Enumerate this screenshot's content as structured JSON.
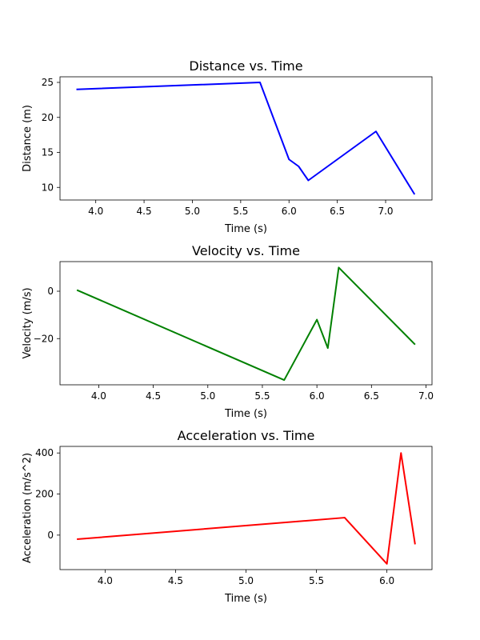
{
  "chart_data": [
    {
      "type": "line",
      "title": "Distance vs. Time",
      "xlabel": "Time (s)",
      "ylabel": "Distance (m)",
      "color": "#0000ff",
      "xlim": [
        3.63,
        7.48
      ],
      "ylim": [
        8.2,
        25.8
      ],
      "xticks": [
        4.0,
        4.5,
        5.0,
        5.5,
        6.0,
        6.5,
        7.0
      ],
      "xtick_labels": [
        "4.0",
        "4.5",
        "5.0",
        "5.5",
        "6.0",
        "6.5",
        "7.0"
      ],
      "yticks": [
        10,
        15,
        20,
        25
      ],
      "ytick_labels": [
        "10",
        "15",
        "20",
        "25"
      ],
      "x": [
        3.8,
        5.7,
        6.0,
        6.1,
        6.2,
        6.9,
        7.3
      ],
      "y": [
        24,
        25,
        14,
        13,
        11,
        18,
        9
      ]
    },
    {
      "type": "line",
      "title": "Velocity vs. Time",
      "xlabel": "Time (s)",
      "ylabel": "Velocity (m/s)",
      "color": "#008000",
      "xlim": [
        3.645,
        7.055
      ],
      "ylim": [
        -39.5,
        12.5
      ],
      "xticks": [
        4.0,
        4.5,
        5.0,
        5.5,
        6.0,
        6.5,
        7.0
      ],
      "xtick_labels": [
        "4.0",
        "4.5",
        "5.0",
        "5.5",
        "6.0",
        "6.5",
        "7.0"
      ],
      "yticks": [
        -20,
        0
      ],
      "ytick_labels": [
        "−20",
        "0"
      ],
      "x": [
        3.8,
        5.7,
        6.0,
        6.1,
        6.2,
        6.9
      ],
      "y": [
        0.5,
        -37.5,
        -12,
        -24,
        10,
        -22.5
      ]
    },
    {
      "type": "line",
      "title": "Acceleration vs. Time",
      "xlabel": "Time (s)",
      "ylabel": "Acceleration (m/s^2)",
      "color": "#ff0000",
      "xlim": [
        3.68,
        6.32
      ],
      "ylim": [
        -168,
        432
      ],
      "xticks": [
        4.0,
        4.5,
        5.0,
        5.5,
        6.0
      ],
      "xtick_labels": [
        "4.0",
        "4.5",
        "5.0",
        "5.5",
        "6.0"
      ],
      "yticks": [
        0,
        200,
        400
      ],
      "ytick_labels": [
        "0",
        "200",
        "400"
      ],
      "x": [
        3.8,
        5.7,
        6.0,
        6.1,
        6.2
      ],
      "y": [
        -20,
        85,
        -140,
        400,
        -45
      ]
    }
  ]
}
